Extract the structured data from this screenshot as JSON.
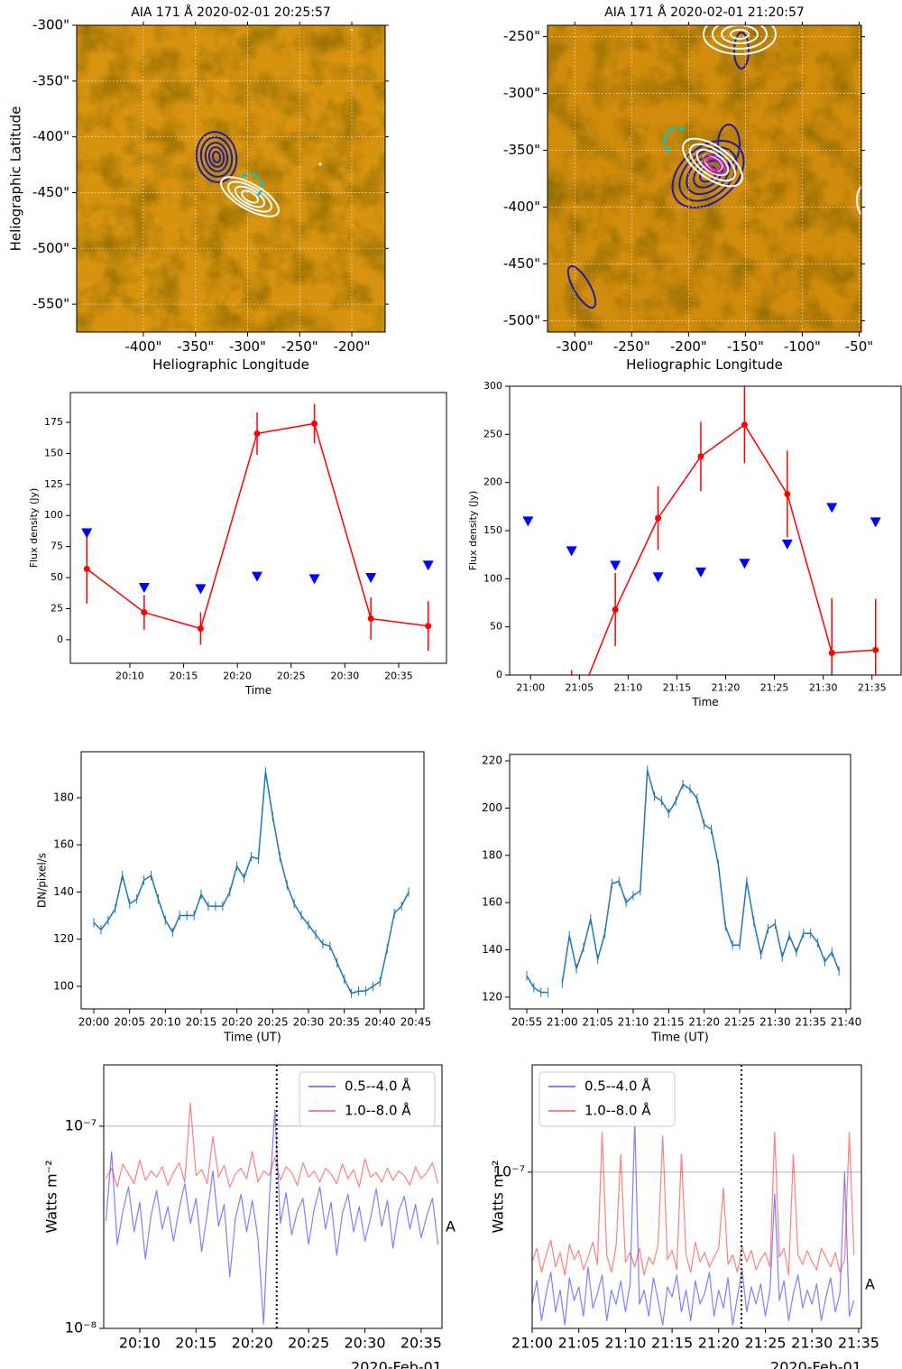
{
  "chart_data": [
    {
      "type": "image",
      "title": "AIA 171 Å 2020-02-01 20:25:57",
      "xlabel": "Heliographic Longitude",
      "ylabel": "Heliographic Latitude",
      "xlim": [
        -464,
        -168
      ],
      "ylim": [
        -575,
        -300
      ],
      "grid": "both",
      "xticks": [
        {
          "value": -400,
          "label": "-400\""
        },
        {
          "value": -350,
          "label": "-350\""
        },
        {
          "value": -300,
          "label": "-300\""
        },
        {
          "value": -250,
          "label": "-250\""
        },
        {
          "value": -200,
          "label": "-200\""
        }
      ],
      "yticks": [
        {
          "value": -300,
          "label": "-300\""
        },
        {
          "value": -350,
          "label": "-350\""
        },
        {
          "value": -400,
          "label": "-400\""
        },
        {
          "value": -450,
          "label": "-450\""
        },
        {
          "value": -500,
          "label": "-500\""
        },
        {
          "value": -550,
          "label": "-550\""
        }
      ]
    },
    {
      "type": "image",
      "title": "AIA 171 Å 2020-02-01 21:20:57",
      "xlabel": "Heliographic Longitude",
      "xlim": [
        -324,
        -48
      ],
      "ylim": [
        -510,
        -240
      ],
      "grid": "both",
      "xticks": [
        {
          "value": -300,
          "label": "-300\""
        },
        {
          "value": -250,
          "label": "-250\""
        },
        {
          "value": -200,
          "label": "-200\""
        },
        {
          "value": -150,
          "label": "-150\""
        },
        {
          "value": -100,
          "label": "-100\""
        },
        {
          "value": -50,
          "label": "-50\""
        }
      ],
      "yticks": [
        {
          "value": -250,
          "label": "-250\""
        },
        {
          "value": -300,
          "label": "-300\""
        },
        {
          "value": -350,
          "label": "-350\""
        },
        {
          "value": -400,
          "label": "-400\""
        },
        {
          "value": -450,
          "label": "-450\""
        },
        {
          "value": -500,
          "label": "-500\""
        }
      ]
    },
    {
      "type": "line",
      "xlabel": "Time",
      "ylabel": "Flux density (Jy)",
      "x": [
        "20:06:00",
        "20:11:20",
        "20:16:35",
        "20:21:50",
        "20:27:10",
        "20:32:25",
        "20:37:45"
      ],
      "series": [
        {
          "color": "red",
          "marker": "o",
          "values": [
            57,
            22,
            9,
            166,
            174,
            17,
            11
          ],
          "errors": [
            28,
            14,
            13,
            17,
            16,
            17,
            20
          ]
        },
        {
          "color": "blue",
          "marker": "v",
          "line": false,
          "values": [
            86,
            42,
            41,
            51,
            49,
            50,
            60
          ]
        }
      ],
      "xlim": [
        "20:04:28",
        "20:39:27"
      ],
      "ylim": [
        -19,
        199
      ],
      "xticks": [
        "20:10",
        "20:15",
        "20:20",
        "20:25",
        "20:30",
        "20:35"
      ],
      "yticks": [
        0,
        25,
        50,
        75,
        100,
        125,
        150,
        175
      ]
    },
    {
      "type": "line",
      "xlabel": "Time",
      "ylabel": "Flux density (Jy)",
      "x": [
        "20:59:44",
        "21:04:12",
        "21:08:41",
        "21:13:04",
        "21:17:27",
        "21:21:56",
        "21:26:19",
        "21:30:53",
        "21:35:22"
      ],
      "series": [
        {
          "color": "red",
          "marker": "o",
          "values": [
            null,
            -45,
            68,
            163,
            227,
            260,
            188,
            23,
            26
          ],
          "errors": [
            null,
            50,
            38,
            33,
            36,
            40,
            45,
            57,
            53
          ]
        },
        {
          "color": "blue",
          "marker": "v",
          "line": false,
          "values": [
            160,
            129,
            114,
            102,
            107,
            116,
            136,
            174,
            159
          ]
        }
      ],
      "xlim": [
        "20:57:51",
        "21:37:59"
      ],
      "ylim": [
        0,
        300
      ],
      "xticks": [
        "21:00",
        "21:05",
        "21:10",
        "21:15",
        "21:20",
        "21:25",
        "21:30",
        "21:35"
      ],
      "yticks": [
        0,
        50,
        100,
        150,
        200,
        250,
        300
      ]
    },
    {
      "type": "line",
      "xlabel": "Time (UT)",
      "ylabel": "DN/pixel/s",
      "x": [
        "20:00",
        "20:01",
        "20:02",
        "20:03",
        "20:04",
        "20:05",
        "20:06",
        "20:07",
        "20:08",
        "20:09",
        "20:10",
        "20:11",
        "20:12",
        "20:13",
        "20:14",
        "20:15",
        "20:16",
        "20:17",
        "20:18",
        "20:19",
        "20:20",
        "20:21",
        "20:22",
        "20:23",
        "20:24",
        "20:25",
        "20:26",
        "20:27",
        "20:28",
        "20:29",
        "20:30",
        "20:31",
        "20:32",
        "20:33",
        "20:34",
        "20:35",
        "20:36",
        "20:37",
        "20:38",
        "20:39",
        "20:40",
        "20:41",
        "20:42",
        "20:43",
        "20:44"
      ],
      "series": [
        {
          "color": "#1f77b4",
          "yerr": 2,
          "values": [
            127,
            124,
            128,
            133,
            147,
            135,
            137,
            145,
            147,
            137,
            128,
            123,
            130,
            130,
            130,
            139,
            134,
            134,
            134,
            140,
            151,
            146,
            155,
            154,
            191,
            172,
            155,
            143,
            135,
            130,
            126,
            122,
            118,
            117,
            110,
            103,
            97,
            98,
            98,
            100,
            102,
            116,
            131,
            134,
            140
          ]
        }
      ],
      "xlim": [
        "19:58:14",
        "20:46:08"
      ],
      "ylim": [
        90.4,
        199.5
      ],
      "xticks": [
        "20:00",
        "20:05",
        "20:10",
        "20:15",
        "20:20",
        "20:25",
        "20:30",
        "20:35",
        "20:40",
        "20:45"
      ],
      "yticks": [
        100,
        120,
        140,
        160,
        180
      ]
    },
    {
      "type": "line",
      "xlabel": "Time (UT)",
      "x": [
        "20:55",
        "20:56",
        "20:57",
        "20:58",
        "20:59",
        "21:00",
        "21:01",
        "21:02",
        "21:03",
        "21:04",
        "21:05",
        "21:06",
        "21:07",
        "21:08",
        "21:09",
        "21:10",
        "21:11",
        "21:12",
        "21:13",
        "21:14",
        "21:15",
        "21:16",
        "21:17",
        "21:18",
        "21:19",
        "21:20",
        "21:21",
        "21:22",
        "21:23",
        "21:24",
        "21:25",
        "21:26",
        "21:27",
        "21:28",
        "21:29",
        "21:30",
        "21:31",
        "21:32",
        "21:33",
        "21:34",
        "21:35",
        "21:36",
        "21:37",
        "21:38",
        "21:39"
      ],
      "series": [
        {
          "color": "#1f77b4",
          "yerr": 2,
          "values": [
            129,
            124,
            122,
            122,
            null,
            126,
            146,
            132,
            141,
            153,
            136,
            147,
            168,
            169,
            160,
            163,
            165,
            216,
            205,
            203,
            198,
            203,
            210,
            208,
            204,
            193,
            191,
            176,
            150,
            142,
            142,
            169,
            152,
            138,
            149,
            151,
            137,
            146,
            139,
            147,
            147,
            143,
            135,
            139,
            131
          ]
        }
      ],
      "xlim": [
        "20:52:35",
        "21:40:38"
      ],
      "ylim": [
        115,
        222.7
      ],
      "xticks": [
        "20:55",
        "21:00",
        "21:05",
        "21:10",
        "21:15",
        "21:20",
        "21:25",
        "21:30",
        "21:35",
        "21:40"
      ],
      "yticks": [
        120,
        140,
        160,
        180,
        200,
        220
      ]
    },
    {
      "type": "line",
      "log": true,
      "grid": "y",
      "ylabel": "Watts m⁻²",
      "date_label": "2020-Feb-01",
      "annotation": "A",
      "vline": "20:22:10",
      "legend": "upper right",
      "x": [
        "20:07:00",
        "20:07:30",
        "20:08:00",
        "20:08:30",
        "20:09:00",
        "20:09:30",
        "20:10:00",
        "20:10:30",
        "20:11:00",
        "20:11:30",
        "20:12:00",
        "20:12:30",
        "20:13:00",
        "20:13:30",
        "20:14:00",
        "20:14:30",
        "20:15:00",
        "20:15:30",
        "20:16:00",
        "20:16:30",
        "20:17:00",
        "20:17:30",
        "20:18:00",
        "20:18:30",
        "20:19:00",
        "20:19:30",
        "20:20:00",
        "20:20:30",
        "20:21:00",
        "20:21:30",
        "20:22:00",
        "20:22:30",
        "20:23:00",
        "20:23:30",
        "20:24:00",
        "20:24:30",
        "20:25:00",
        "20:25:30",
        "20:26:00",
        "20:26:30",
        "20:27:00",
        "20:27:30",
        "20:28:00",
        "20:28:30",
        "20:29:00",
        "20:29:30",
        "20:30:00",
        "20:30:30",
        "20:31:00",
        "20:31:30",
        "20:32:00",
        "20:32:30",
        "20:33:00",
        "20:33:30",
        "20:34:00",
        "20:34:30",
        "20:35:00",
        "20:35:30",
        "20:36:00",
        "20:36:30"
      ],
      "series": [
        {
          "name": "0.5--4.0 Å",
          "color": "blue",
          "alpha": 0.5,
          "values": [
            3.4e-08,
            7.5e-08,
            2.6e-08,
            3.8e-08,
            5e-08,
            3e-08,
            4.2e-08,
            2.2e-08,
            3.6e-08,
            4.8e-08,
            3.1e-08,
            4e-08,
            2.7e-08,
            3.9e-08,
            5.2e-08,
            3.3e-08,
            4.4e-08,
            2.4e-08,
            3.7e-08,
            6e-08,
            3.2e-08,
            4.1e-08,
            1.8e-08,
            3.5e-08,
            4.6e-08,
            3e-08,
            4.3e-08,
            2.8e-08,
            1.05e-08,
            4.2e-08,
            1.2e-07,
            3.3e-08,
            4.7e-08,
            2.9e-08,
            3.8e-08,
            4.4e-08,
            2.6e-08,
            3.9e-08,
            5e-08,
            3.1e-08,
            4.2e-08,
            2.3e-08,
            3.7e-08,
            4.6e-08,
            3e-08,
            4e-08,
            2.7e-08,
            3.5e-08,
            4.9e-08,
            3.2e-08,
            4.3e-08,
            2.5e-08,
            3.8e-08,
            4.5e-08,
            3.1e-08,
            4.1e-08,
            2.8e-08,
            3.6e-08,
            4.4e-08,
            2.6e-08
          ]
        },
        {
          "name": "1.0--8.0 Å",
          "color": "red",
          "alpha": 0.5,
          "values": [
            5.5e-08,
            6.2e-08,
            5e-08,
            6.5e-08,
            5.8e-08,
            5.2e-08,
            6.8e-08,
            5.4e-08,
            6e-08,
            5.6e-08,
            6.3e-08,
            5.1e-08,
            5.9e-08,
            6.6e-08,
            5.3e-08,
            1.3e-07,
            5.7e-08,
            6.1e-08,
            5.2e-08,
            8.9e-08,
            5.6e-08,
            6.4e-08,
            5e-08,
            5.8e-08,
            6.2e-08,
            5.5e-08,
            7.5e-08,
            5.3e-08,
            6e-08,
            5.7e-08,
            7e-08,
            5.4e-08,
            6.3e-08,
            5.9e-08,
            5.1e-08,
            6.6e-08,
            5.6e-08,
            6e-08,
            5.3e-08,
            6.2e-08,
            5.8e-08,
            5.2e-08,
            6.5e-08,
            5.5e-08,
            6.1e-08,
            5e-08,
            6.9e-08,
            5.6e-08,
            5.9e-08,
            5.3e-08,
            6.2e-08,
            5.4e-08,
            6e-08,
            5.7e-08,
            5.1e-08,
            6.3e-08,
            5.5e-08,
            5.9e-08,
            6.6e-08,
            5.2e-08
          ]
        }
      ],
      "xlim": [
        "20:06:48",
        "20:36:51"
      ],
      "ylim": [
        1e-08,
        2.01e-07
      ],
      "xticks": [
        "20:10",
        "20:15",
        "20:20",
        "20:25",
        "20:30",
        "20:35"
      ],
      "yticks": [
        {
          "value": 1e-08,
          "label": "10⁻⁸"
        },
        {
          "value": 1e-07,
          "label": "10⁻⁷"
        }
      ]
    },
    {
      "type": "line",
      "log": true,
      "grid": "y",
      "ylabel": "Watts m⁻²",
      "date_label": "2020-Feb-01",
      "annotation": "A",
      "vline": "21:22:26",
      "legend": "upper left",
      "x": [
        "21:00:00",
        "21:00:30",
        "21:01:00",
        "21:01:30",
        "21:02:00",
        "21:02:30",
        "21:03:00",
        "21:03:30",
        "21:04:00",
        "21:04:30",
        "21:05:00",
        "21:05:30",
        "21:06:00",
        "21:06:30",
        "21:07:00",
        "21:07:30",
        "21:08:00",
        "21:08:30",
        "21:09:00",
        "21:09:30",
        "21:10:00",
        "21:10:30",
        "21:11:00",
        "21:11:30",
        "21:12:00",
        "21:12:30",
        "21:13:00",
        "21:13:30",
        "21:14:00",
        "21:14:30",
        "21:15:00",
        "21:15:30",
        "21:16:00",
        "21:16:30",
        "21:17:00",
        "21:17:30",
        "21:18:00",
        "21:18:30",
        "21:19:00",
        "21:19:30",
        "21:20:00",
        "21:20:30",
        "21:21:00",
        "21:21:30",
        "21:22:00",
        "21:22:30",
        "21:23:00",
        "21:23:30",
        "21:24:00",
        "21:24:30",
        "21:25:00",
        "21:25:30",
        "21:26:00",
        "21:26:30",
        "21:27:00",
        "21:27:30",
        "21:28:00",
        "21:28:30",
        "21:29:00",
        "21:29:30",
        "21:30:00",
        "21:30:30",
        "21:31:00",
        "21:31:30",
        "21:32:00",
        "21:32:30",
        "21:33:00",
        "21:33:30",
        "21:34:00",
        "21:34:30"
      ],
      "series": [
        {
          "name": "0.5--4.0 Å",
          "color": "blue",
          "alpha": 0.5,
          "values": [
            2.6e-08,
            3.3e-08,
            2.2e-08,
            2.9e-08,
            3.6e-08,
            2.4e-08,
            3e-08,
            2.1e-08,
            3.4e-08,
            2.7e-08,
            3.1e-08,
            2.3e-08,
            3.8e-08,
            2.5e-08,
            2.9e-08,
            3.5e-08,
            2.2e-08,
            3e-08,
            2.6e-08,
            3.3e-08,
            2.4e-08,
            3.2e-08,
            1.7e-07,
            2.6e-08,
            3e-08,
            2.3e-08,
            3.4e-08,
            2.7e-08,
            2.1e-08,
            3.1e-08,
            2.8e-08,
            3.5e-08,
            2.4e-08,
            3e-08,
            2.2e-08,
            3.3e-08,
            2.6e-08,
            2.9e-08,
            3.6e-08,
            2.3e-08,
            3e-08,
            2.5e-08,
            3.4e-08,
            2.1e-08,
            2.8e-08,
            3.7e-08,
            2.4e-08,
            3.1e-08,
            2.6e-08,
            3.2e-08,
            2.3e-08,
            3e-08,
            8e-08,
            2.7e-08,
            3.3e-08,
            2.2e-08,
            2.9e-08,
            3.5e-08,
            2.5e-08,
            3e-08,
            2.6e-08,
            3.2e-08,
            2.2e-08,
            2.8e-08,
            3.4e-08,
            2.4e-08,
            2.9e-08,
            1e-07,
            2.3e-08,
            2.7e-08
          ]
        },
        {
          "name": "1.0--8.0 Å",
          "color": "red",
          "alpha": 0.5,
          "values": [
            4e-08,
            4.6e-08,
            3.6e-08,
            4.3e-08,
            5e-08,
            3.8e-08,
            4.4e-08,
            3.5e-08,
            4.8e-08,
            4.1e-08,
            4.5e-08,
            3.7e-08,
            4.2e-08,
            4.9e-08,
            3.9e-08,
            1.5e-07,
            4.3e-08,
            3.6e-08,
            4.7e-08,
            1.2e-07,
            4e-08,
            4.4e-08,
            3.8e-08,
            4.6e-08,
            3.5e-08,
            4.2e-08,
            3.9e-08,
            4.8e-08,
            1.45e-07,
            4.1e-08,
            4.5e-08,
            3.7e-08,
            1.2e-07,
            4.3e-08,
            3.6e-08,
            4.9e-08,
            4e-08,
            4.4e-08,
            3.8e-08,
            4.2e-08,
            4.6e-08,
            8.5e-08,
            3.9e-08,
            4.3e-08,
            3.6e-08,
            4.7e-08,
            4e-08,
            4.5e-08,
            3.7e-08,
            4.1e-08,
            4.4e-08,
            3.8e-08,
            1.5e-07,
            4.2e-08,
            4.6e-08,
            3.5e-08,
            1.2e-07,
            4.3e-08,
            3.9e-08,
            4.5e-08,
            4e-08,
            3.7e-08,
            4.6e-08,
            4.2e-08,
            3.8e-08,
            4.4e-08,
            3.6e-08,
            4.1e-08,
            1.5e-07,
            4.3e-08
          ]
        }
      ],
      "xlim": [
        "21:00:00",
        "21:35:18"
      ],
      "ylim": [
        2.03e-08,
        2.99e-07
      ],
      "xticks": [
        "21:00",
        "21:05",
        "21:10",
        "21:15",
        "21:20",
        "21:25",
        "21:30",
        "21:35"
      ],
      "yticks": [
        {
          "value": 1e-07,
          "label": "10⁻⁷"
        }
      ]
    }
  ]
}
